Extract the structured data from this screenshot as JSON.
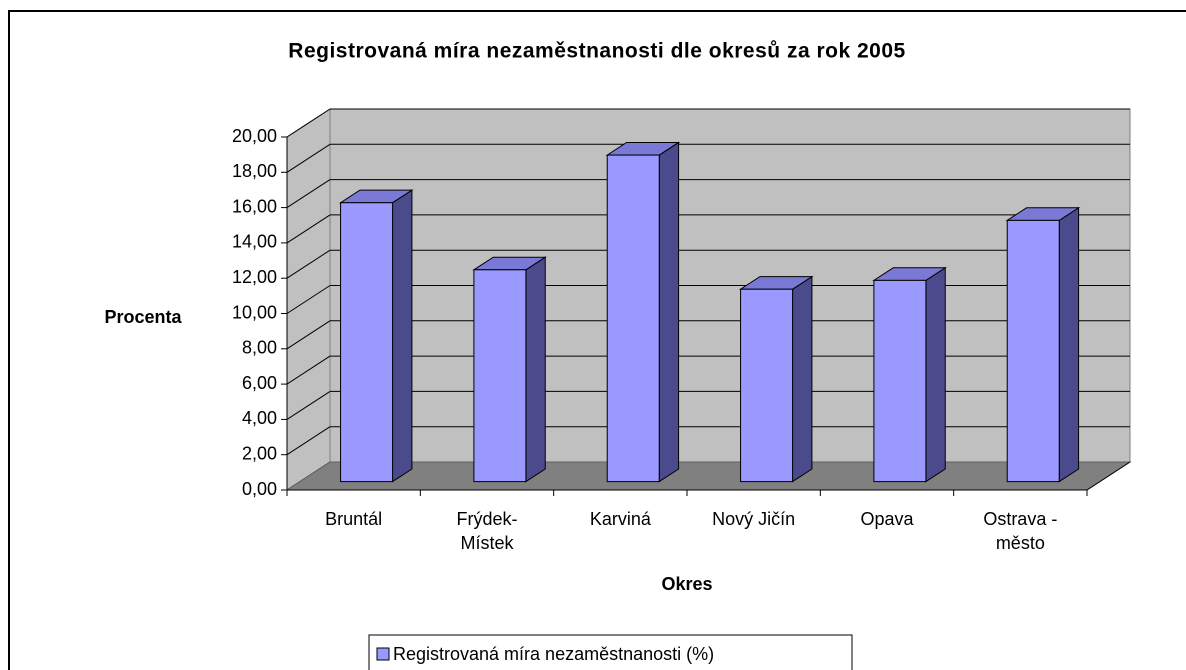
{
  "chart_data": {
    "type": "bar3d",
    "title": "Registrovaná míra nezaměstnanosti dle okresů za rok 2005",
    "y_label": "Procenta",
    "x_label": "Okres",
    "categories": [
      "Bruntál",
      "Frýdek-\nMístek",
      "Karviná",
      "Nový Jičín",
      "Opava",
      "Ostrava -\nměsto"
    ],
    "series": [
      {
        "name": "Registrovaná míra nezaměstnanosti (%)",
        "color": "#9999ff",
        "values": [
          15.8,
          12.0,
          18.5,
          10.9,
          11.4,
          14.8
        ]
      }
    ],
    "ylim": [
      0,
      20
    ],
    "yticks": [
      {
        "value": 0,
        "label": "0,00"
      },
      {
        "value": 2,
        "label": "2,00"
      },
      {
        "value": 4,
        "label": "4,00"
      },
      {
        "value": 6,
        "label": "6,00"
      },
      {
        "value": 8,
        "label": "8,00"
      },
      {
        "value": 10,
        "label": "10,00"
      },
      {
        "value": 12,
        "label": "12,00"
      },
      {
        "value": 14,
        "label": "14,00"
      },
      {
        "value": 16,
        "label": "16,00"
      },
      {
        "value": 18,
        "label": "18,00"
      },
      {
        "value": 20,
        "label": "20,00"
      }
    ],
    "grid": true,
    "legend": "bottom"
  }
}
